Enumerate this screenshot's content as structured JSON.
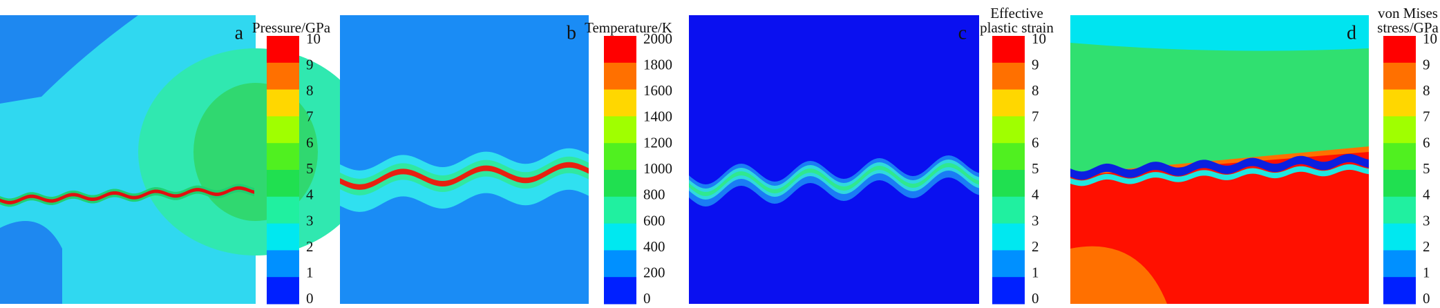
{
  "panels": [
    {
      "label": "a",
      "colorbar": {
        "title": [
          "Pressure/GPa"
        ],
        "ticks": [
          10,
          9,
          8,
          7,
          6,
          5,
          4,
          3,
          2,
          1,
          0
        ],
        "colors": [
          "#ff0000",
          "#ff7000",
          "#ffd700",
          "#a0ff00",
          "#50f020",
          "#20e050",
          "#20f0a0",
          "#00e8f0",
          "#0090ff",
          "#0020ff"
        ]
      }
    },
    {
      "label": "b",
      "colorbar": {
        "title": [
          "Temperature/K"
        ],
        "ticks": [
          2000,
          1800,
          1600,
          1400,
          1200,
          1000,
          800,
          600,
          400,
          200,
          0
        ],
        "colors": [
          "#ff0000",
          "#ff7000",
          "#ffd700",
          "#a0ff00",
          "#50f020",
          "#20e050",
          "#20f0a0",
          "#00e8f0",
          "#0090ff",
          "#0020ff"
        ]
      }
    },
    {
      "label": "c",
      "colorbar": {
        "title": [
          "Effective",
          "plastic strain"
        ],
        "ticks": [
          10,
          9,
          8,
          7,
          6,
          5,
          4,
          3,
          2,
          1,
          0
        ],
        "colors": [
          "#ff0000",
          "#ff7000",
          "#ffd700",
          "#a0ff00",
          "#50f020",
          "#20e050",
          "#20f0a0",
          "#00e8f0",
          "#0090ff",
          "#0020ff"
        ]
      }
    },
    {
      "label": "d",
      "colorbar": {
        "title": [
          "von Mises",
          "stress/GPa"
        ],
        "ticks": [
          10,
          9,
          8,
          7,
          6,
          5,
          4,
          3,
          2,
          1,
          0
        ],
        "colors": [
          "#ff0000",
          "#ff7000",
          "#ffd700",
          "#a0ff00",
          "#50f020",
          "#20e050",
          "#20f0a0",
          "#00e8f0",
          "#0090ff",
          "#0020ff"
        ]
      }
    }
  ]
}
